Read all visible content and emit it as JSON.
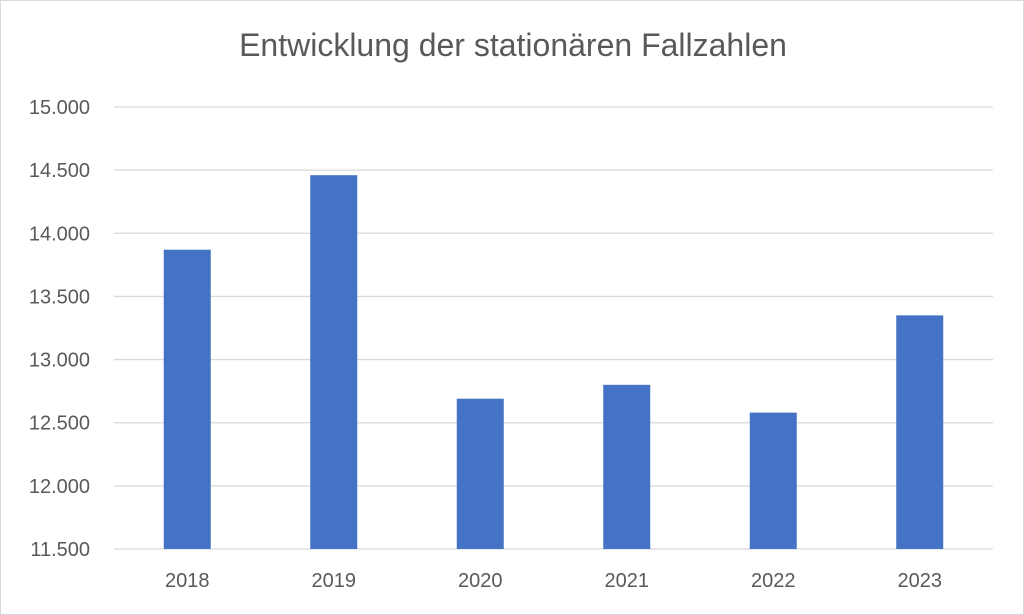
{
  "chart_data": {
    "type": "bar",
    "title": "Entwicklung der stationären Fallzahlen",
    "xlabel": "",
    "ylabel": "",
    "categories": [
      "2018",
      "2019",
      "2020",
      "2021",
      "2022",
      "2023"
    ],
    "series": [
      {
        "values": [
          13870,
          14460,
          12690,
          12800,
          12580,
          13350
        ]
      }
    ],
    "ylim": [
      11500,
      15000
    ],
    "ytick_step": 500,
    "ytick_labels": [
      "11.500",
      "12.000",
      "12.500",
      "13.000",
      "13.500",
      "14.000",
      "14.500",
      "15.000"
    ],
    "grid": true,
    "legend": "none",
    "colors": {
      "bar": "#4472C4",
      "grid": "#d9d9d9",
      "text": "#595959"
    }
  }
}
